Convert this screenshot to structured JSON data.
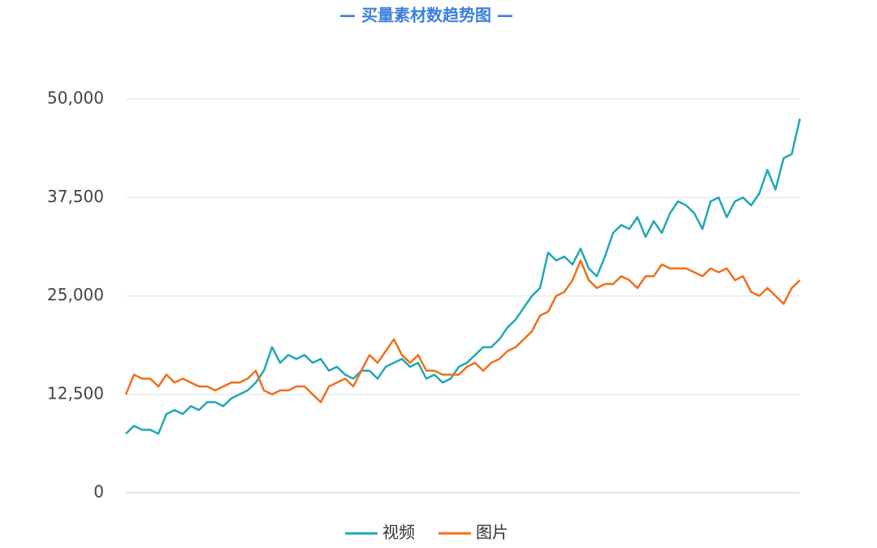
{
  "chart_data": {
    "type": "line",
    "title": "— 买量素材数趋势图 —",
    "ylim": [
      0,
      50000
    ],
    "yticks": [
      0,
      {
        "value": 12500,
        "label": "12,500"
      },
      {
        "value": 25000,
        "label": "25,000"
      },
      {
        "value": 37500,
        "label": "37,500"
      },
      {
        "value": 50000,
        "label": "50,000"
      }
    ],
    "grid": true,
    "legend": "bottom",
    "series": [
      {
        "name": "视频",
        "color": "#1fa8b4",
        "values": [
          7500,
          8500,
          8000,
          8000,
          7500,
          10000,
          10500,
          10000,
          11000,
          10500,
          11500,
          11500,
          11000,
          12000,
          12500,
          13000,
          14000,
          15500,
          18500,
          16500,
          17500,
          17000,
          17500,
          16500,
          17000,
          15500,
          16000,
          15000,
          14500,
          15500,
          15500,
          14500,
          16000,
          16500,
          17000,
          16000,
          16500,
          14500,
          15000,
          14000,
          14500,
          16000,
          16500,
          17500,
          18500,
          18500,
          19500,
          21000,
          22000,
          23500,
          25000,
          26000,
          30500,
          29500,
          30000,
          29000,
          31000,
          28500,
          27500,
          30000,
          33000,
          34000,
          33500,
          35000,
          32500,
          34500,
          33000,
          35500,
          37000,
          36500,
          35500,
          33500,
          37000,
          37500,
          35000,
          37000,
          37500,
          36500,
          38000,
          41000,
          38500,
          42500,
          43000,
          47500
        ]
      },
      {
        "name": "图片",
        "color": "#f06e1a",
        "values": [
          12500,
          15000,
          14500,
          14500,
          13500,
          15000,
          14000,
          14500,
          14000,
          13500,
          13500,
          13000,
          13500,
          14000,
          14000,
          14500,
          15500,
          13000,
          12500,
          13000,
          13000,
          13500,
          13500,
          12500,
          11500,
          13500,
          14000,
          14500,
          13500,
          15500,
          17500,
          16500,
          18000,
          19500,
          17500,
          16500,
          17500,
          15500,
          15500,
          15000,
          15000,
          15000,
          16000,
          16500,
          15500,
          16500,
          17000,
          18000,
          18500,
          19500,
          20500,
          22500,
          23000,
          25000,
          25500,
          27000,
          29500,
          27000,
          26000,
          26500,
          26500,
          27500,
          27000,
          26000,
          27500,
          27500,
          29000,
          28500,
          28500,
          28500,
          28000,
          27500,
          28500,
          28000,
          28500,
          27000,
          27500,
          25500,
          25000,
          26000,
          25000,
          24000,
          26000,
          27000
        ]
      }
    ]
  }
}
